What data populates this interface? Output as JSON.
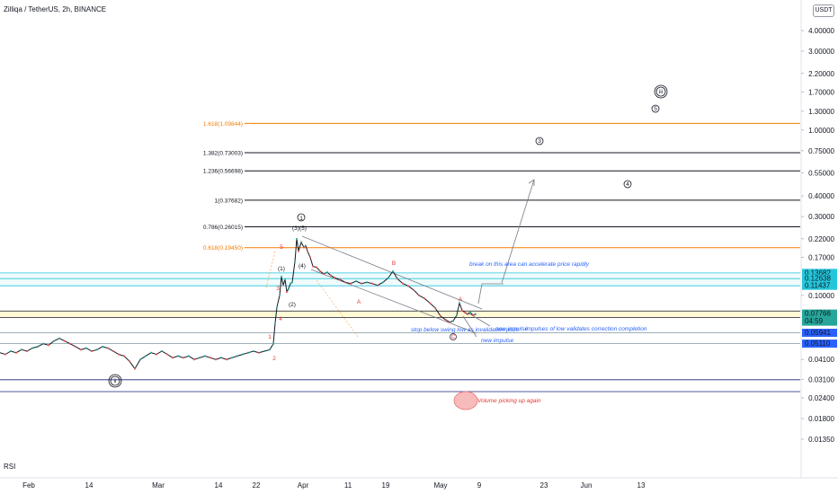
{
  "header": {
    "title": "Zilliqa / TetherUS, 2h, BINANCE",
    "currency": "USDT"
  },
  "indicator_label": "RSI",
  "chart_data": {
    "type": "line",
    "y_scale": "log",
    "ylim": [
      0.012,
      5.2
    ],
    "y_ticks": [
      {
        "value": 4.0,
        "label": "4.00000"
      },
      {
        "value": 3.0,
        "label": "3.00000"
      },
      {
        "value": 2.2,
        "label": "2.20000"
      },
      {
        "value": 1.7,
        "label": "1.70000"
      },
      {
        "value": 1.3,
        "label": "1.30000"
      },
      {
        "value": 1.0,
        "label": "1.00000"
      },
      {
        "value": 0.75,
        "label": "0.75000"
      },
      {
        "value": 0.55,
        "label": "0.55000"
      },
      {
        "value": 0.4,
        "label": "0.40000"
      },
      {
        "value": 0.3,
        "label": "0.30000"
      },
      {
        "value": 0.22,
        "label": "0.22000"
      },
      {
        "value": 0.17,
        "label": "0.17000"
      },
      {
        "value": 0.1,
        "label": "0.10000"
      },
      {
        "value": 0.041,
        "label": "0.04100"
      },
      {
        "value": 0.031,
        "label": "0.03100"
      },
      {
        "value": 0.024,
        "label": "0.02400"
      },
      {
        "value": 0.018,
        "label": "0.01800"
      },
      {
        "value": 0.0135,
        "label": "0.01350"
      }
    ],
    "x_ticks": [
      "Feb",
      "14",
      "Mar",
      "14",
      "22",
      "Apr",
      "11",
      "19",
      "May",
      "9",
      "23",
      "Jun",
      "13"
    ],
    "price_labels": [
      {
        "label": "0.13682",
        "value": 0.13682,
        "color": "#26c6da"
      },
      {
        "label": "0.12638",
        "value": 0.12638,
        "color": "#26c6da"
      },
      {
        "label": "0.11437",
        "value": 0.11437,
        "color": "#26c6da"
      },
      {
        "label": "0.07766",
        "value": 0.07766,
        "color": "#26a69a",
        "sub": "04:59"
      },
      {
        "label": "0.05941",
        "value": 0.05941,
        "color": "#2962ff"
      },
      {
        "label": "0.05110",
        "value": 0.0511,
        "color": "#2962ff"
      }
    ],
    "fib_levels": [
      {
        "label": "1.618(1.09844)",
        "value": 1.09844,
        "color": "#f57c00"
      },
      {
        "label": "1.382(0.73003)",
        "value": 0.73003,
        "color": "#131722"
      },
      {
        "label": "1.236(0.56698)",
        "value": 0.56698,
        "color": "#131722"
      },
      {
        "label": "1(0.37682)",
        "value": 0.37682,
        "color": "#131722"
      },
      {
        "label": "0.786(0.26015)",
        "value": 0.26015,
        "color": "#131722"
      },
      {
        "label": "0.618(0.19450)",
        "value": 0.1945,
        "color": "#f57c00"
      }
    ],
    "series": [
      {
        "values": [
          [
            0,
            0.045
          ],
          [
            6,
            0.044
          ],
          [
            12,
            0.046
          ],
          [
            18,
            0.045
          ],
          [
            24,
            0.047
          ],
          [
            30,
            0.046
          ],
          [
            36,
            0.048
          ],
          [
            42,
            0.049
          ],
          [
            48,
            0.051
          ],
          [
            54,
            0.05
          ],
          [
            60,
            0.053
          ],
          [
            66,
            0.055
          ],
          [
            72,
            0.053
          ],
          [
            78,
            0.051
          ],
          [
            84,
            0.049
          ],
          [
            90,
            0.047
          ],
          [
            96,
            0.048
          ],
          [
            102,
            0.046
          ],
          [
            108,
            0.047
          ],
          [
            114,
            0.049
          ],
          [
            120,
            0.048
          ],
          [
            126,
            0.046
          ],
          [
            132,
            0.044
          ],
          [
            138,
            0.043
          ],
          [
            144,
            0.04
          ],
          [
            150,
            0.036
          ],
          [
            156,
            0.041
          ],
          [
            162,
            0.043
          ],
          [
            168,
            0.045
          ],
          [
            174,
            0.044
          ],
          [
            180,
            0.046
          ],
          [
            186,
            0.044
          ],
          [
            192,
            0.042
          ],
          [
            198,
            0.043
          ],
          [
            204,
            0.042
          ],
          [
            210,
            0.043
          ],
          [
            216,
            0.041
          ],
          [
            222,
            0.042
          ],
          [
            228,
            0.043
          ],
          [
            234,
            0.042
          ],
          [
            240,
            0.041
          ],
          [
            246,
            0.042
          ],
          [
            252,
            0.041
          ],
          [
            258,
            0.042
          ],
          [
            264,
            0.043
          ],
          [
            270,
            0.044
          ],
          [
            276,
            0.045
          ],
          [
            282,
            0.046
          ],
          [
            288,
            0.045
          ],
          [
            294,
            0.046
          ],
          [
            300,
            0.047
          ],
          [
            304,
            0.051
          ],
          [
            306,
            0.068
          ],
          [
            308,
            0.085
          ],
          [
            311,
            0.1
          ],
          [
            313,
            0.13
          ],
          [
            315,
            0.115
          ],
          [
            317,
            0.125
          ],
          [
            319,
            0.105
          ],
          [
            321,
            0.11
          ],
          [
            323,
            0.118
          ],
          [
            325,
            0.12
          ],
          [
            328,
            0.16
          ],
          [
            330,
            0.22
          ],
          [
            332,
            0.185
          ],
          [
            335,
            0.21
          ],
          [
            338,
            0.195
          ],
          [
            340,
            0.2
          ],
          [
            342,
            0.185
          ],
          [
            345,
            0.17
          ],
          [
            348,
            0.15
          ],
          [
            352,
            0.148
          ],
          [
            356,
            0.14
          ],
          [
            360,
            0.135
          ],
          [
            364,
            0.138
          ],
          [
            368,
            0.132
          ],
          [
            372,
            0.128
          ],
          [
            378,
            0.125
          ],
          [
            384,
            0.12
          ],
          [
            390,
            0.118
          ],
          [
            396,
            0.122
          ],
          [
            402,
            0.118
          ],
          [
            408,
            0.12
          ],
          [
            414,
            0.118
          ],
          [
            420,
            0.115
          ],
          [
            426,
            0.12
          ],
          [
            432,
            0.128
          ],
          [
            437,
            0.14
          ],
          [
            442,
            0.126
          ],
          [
            448,
            0.118
          ],
          [
            454,
            0.114
          ],
          [
            460,
            0.108
          ],
          [
            466,
            0.1
          ],
          [
            472,
            0.096
          ],
          [
            478,
            0.09
          ],
          [
            484,
            0.084
          ],
          [
            490,
            0.075
          ],
          [
            496,
            0.071
          ],
          [
            500,
            0.069
          ],
          [
            504,
            0.07
          ],
          [
            508,
            0.076
          ],
          [
            511,
            0.09
          ],
          [
            514,
            0.081
          ],
          [
            517,
            0.079
          ],
          [
            520,
            0.077
          ],
          [
            523,
            0.079
          ],
          [
            526,
            0.076
          ],
          [
            529,
            0.077
          ]
        ]
      }
    ],
    "wave_labels": {
      "black": [
        "1",
        "(1)",
        "(2)",
        "(3)",
        "(5)",
        "(4)",
        "3",
        "5",
        "4",
        "iii",
        "ii"
      ],
      "red": [
        "1",
        "2",
        "3",
        "4",
        "5",
        "A",
        "B",
        "C",
        "A"
      ]
    },
    "annotations": [
      "break on this area can accelerate price rapidly",
      "stop below swing low as invalidation point",
      "new impulse",
      "impulses of low validates correction completion",
      "new impulse",
      "Volume picking up again"
    ]
  }
}
